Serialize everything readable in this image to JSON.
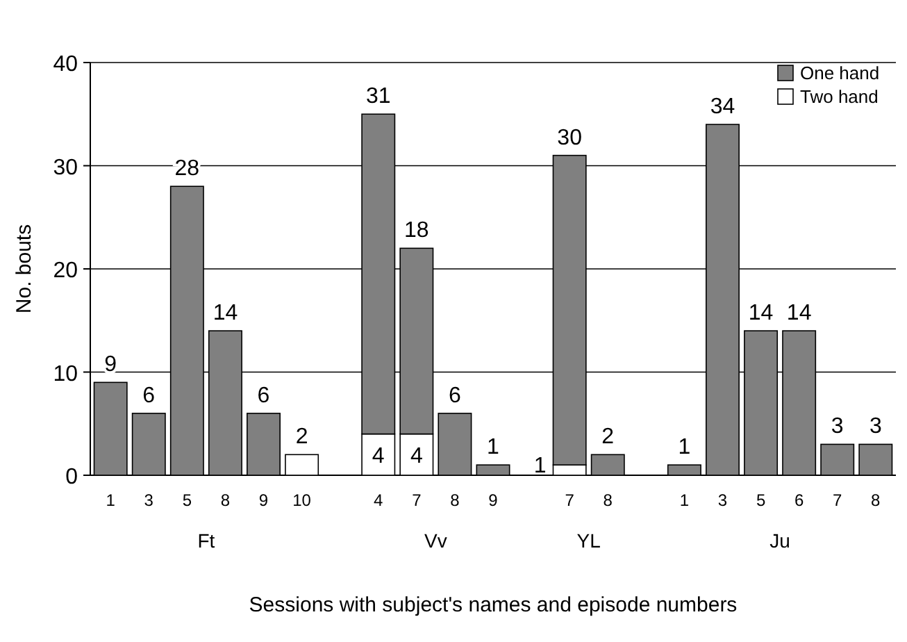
{
  "chart_data": {
    "type": "bar",
    "stacked": true,
    "xlabel": "Sessions with subject's names and episode numbers",
    "ylabel": "No. bouts",
    "categories": [
      "1",
      "3",
      "5",
      "8",
      "9",
      "10",
      null,
      "4",
      "7",
      "8",
      "9",
      null,
      "7",
      "8",
      null,
      "1",
      "3",
      "5",
      "6",
      "7",
      "8"
    ],
    "series": [
      {
        "name": "Two hand",
        "color": "#ffffff",
        "values": [
          null,
          null,
          null,
          null,
          null,
          2,
          null,
          4,
          4,
          null,
          null,
          null,
          1,
          null,
          null,
          null,
          null,
          null,
          null,
          null,
          null
        ]
      },
      {
        "name": "One hand",
        "color": "#808080",
        "values": [
          9,
          6,
          28,
          14,
          6,
          null,
          null,
          31,
          18,
          6,
          1,
          null,
          30,
          2,
          null,
          1,
          34,
          14,
          14,
          3,
          3
        ]
      }
    ],
    "annotations": [
      "Ft",
      "Vv",
      "YL",
      "Ju"
    ],
    "ylim": [
      0,
      40
    ],
    "yticks": [
      0,
      10,
      20,
      30,
      40
    ],
    "grid": "y",
    "legend": "top right",
    "data_labels": true
  }
}
